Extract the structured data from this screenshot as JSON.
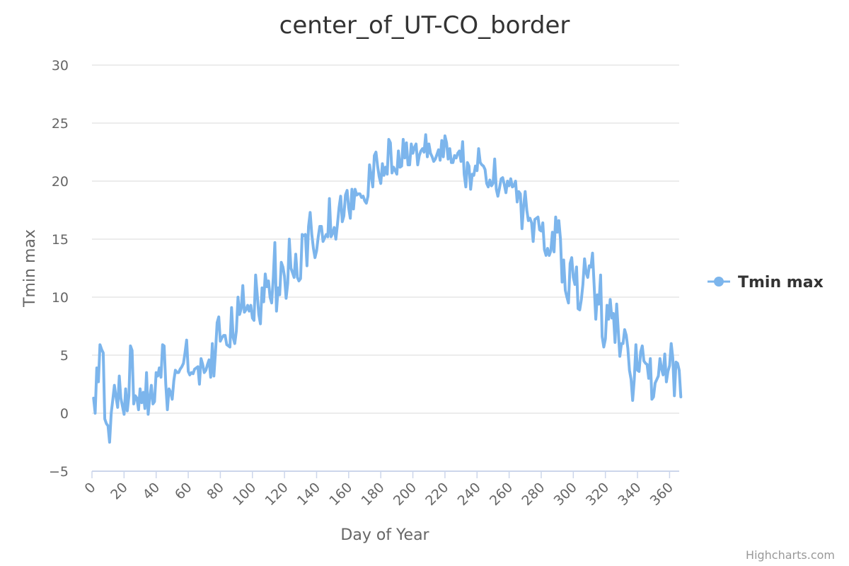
{
  "credits": "Highcharts.com",
  "colors": {
    "series": "#7cb5ec",
    "grid": "#e6e6e6",
    "axis": "#ccd6eb"
  },
  "chart_data": {
    "type": "line",
    "title": "center_of_UT-CO_border",
    "xlabel": "Day of Year",
    "ylabel": "Tmin max",
    "xlim": [
      0,
      366
    ],
    "ylim": [
      -5,
      30
    ],
    "x_ticks": [
      "0",
      "20",
      "40",
      "60",
      "80",
      "100",
      "120",
      "140",
      "160",
      "180",
      "200",
      "220",
      "240",
      "260",
      "280",
      "300",
      "320",
      "340",
      "360"
    ],
    "y_ticks": [
      "−5",
      "0",
      "5",
      "10",
      "15",
      "20",
      "25",
      "30"
    ],
    "grid": true,
    "legend": {
      "position": "right",
      "entries": [
        "Tmin max"
      ]
    },
    "series": [
      {
        "name": "Tmin max",
        "color": "#7cb5ec",
        "x_start": 1,
        "values": [
          1.3,
          0.0,
          3.9,
          2.7,
          5.9,
          5.5,
          5.2,
          -0.5,
          -0.9,
          -1.1,
          -2.5,
          0.0,
          1.2,
          2.4,
          1.4,
          0.5,
          3.2,
          1.3,
          0.6,
          -0.1,
          2.1,
          0.2,
          1.5,
          5.8,
          5.4,
          0.8,
          1.5,
          1.3,
          0.3,
          2.1,
          0.9,
          1.8,
          0.4,
          3.5,
          -0.1,
          1.3,
          2.4,
          0.8,
          1.0,
          3.5,
          3.2,
          3.9,
          3.1,
          5.9,
          5.8,
          2.5,
          0.3,
          2.1,
          1.8,
          1.2,
          2.8,
          3.7,
          3.5,
          3.5,
          3.8,
          4.0,
          4.3,
          5.2,
          6.3,
          3.6,
          3.3,
          3.5,
          3.4,
          3.8,
          3.9,
          4.0,
          2.5,
          4.7,
          4.2,
          3.5,
          3.7,
          4.2,
          4.6,
          3.1,
          6.0,
          3.2,
          5.3,
          7.8,
          8.3,
          6.2,
          6.5,
          6.7,
          6.7,
          5.9,
          5.8,
          5.7,
          9.1,
          6.5,
          6.0,
          7.1,
          10.0,
          8.5,
          9.0,
          11.0,
          8.7,
          8.9,
          9.3,
          8.8,
          9.3,
          8.2,
          8.0,
          11.9,
          10.2,
          8.5,
          7.7,
          10.8,
          9.6,
          12.0,
          10.9,
          11.4,
          10.0,
          9.5,
          11.7,
          14.7,
          8.8,
          10.8,
          10.2,
          13.0,
          12.6,
          11.8,
          9.9,
          11.2,
          15.0,
          12.5,
          12.1,
          11.7,
          13.7,
          11.7,
          11.4,
          11.6,
          15.4,
          15.3,
          15.4,
          12.7,
          16.1,
          17.3,
          15.4,
          14.2,
          13.4,
          14.0,
          15.2,
          16.1,
          16.1,
          14.8,
          15.1,
          15.4,
          15.2,
          18.5,
          15.2,
          15.5,
          16.0,
          15.0,
          16.3,
          17.7,
          18.7,
          16.5,
          17.0,
          18.8,
          19.2,
          17.7,
          16.8,
          19.3,
          17.6,
          19.3,
          18.8,
          18.9,
          18.9,
          18.6,
          18.7,
          18.3,
          18.1,
          18.7,
          21.4,
          20.5,
          19.5,
          22.2,
          22.5,
          21.3,
          20.4,
          19.8,
          21.5,
          20.5,
          21.2,
          20.6,
          23.6,
          23.3,
          20.7,
          21.2,
          20.9,
          20.6,
          22.6,
          21.2,
          21.3,
          23.6,
          22.0,
          23.3,
          21.4,
          21.4,
          23.2,
          22.4,
          22.9,
          23.2,
          21.4,
          22.2,
          22.6,
          22.8,
          22.5,
          24.0,
          22.1,
          23.2,
          22.4,
          22.1,
          21.7,
          21.9,
          22.3,
          22.7,
          21.8,
          23.5,
          22.1,
          23.9,
          23.3,
          21.9,
          22.8,
          21.6,
          21.6,
          22.2,
          22.0,
          22.4,
          22.6,
          21.7,
          23.4,
          20.6,
          19.5,
          21.6,
          21.3,
          19.3,
          20.6,
          20.5,
          21.3,
          20.9,
          22.8,
          21.6,
          21.4,
          21.3,
          21.0,
          19.8,
          19.5,
          20.1,
          19.6,
          19.8,
          21.9,
          19.3,
          18.7,
          19.4,
          20.2,
          20.3,
          19.7,
          19.0,
          20.0,
          19.6,
          20.2,
          19.5,
          19.6,
          20.0,
          18.2,
          19.1,
          18.9,
          15.9,
          17.8,
          19.1,
          17.5,
          16.6,
          16.8,
          16.4,
          14.8,
          16.7,
          16.8,
          16.9,
          15.8,
          15.7,
          16.4,
          14.1,
          13.6,
          14.2,
          13.6,
          14.0,
          15.6,
          13.9,
          16.9,
          15.6,
          16.6,
          15.0,
          11.3,
          13.2,
          10.6,
          10.0,
          9.5,
          12.9,
          13.4,
          11.7,
          11.1,
          12.6,
          9.0,
          8.9,
          9.8,
          11.1,
          13.3,
          12.1,
          11.7,
          12.7,
          12.6,
          13.8,
          11.0,
          8.1,
          10.2,
          9.4,
          11.9,
          6.6,
          5.7,
          6.4,
          9.3,
          8.1,
          9.8,
          8.2,
          8.6,
          6.1,
          9.4,
          7.2,
          4.9,
          6.0,
          6.0,
          7.2,
          6.7,
          5.6,
          3.7,
          2.9,
          1.1,
          2.9,
          5.9,
          3.7,
          3.6,
          5.3,
          5.8,
          4.5,
          4.3,
          4.2,
          3.0,
          4.7,
          1.2,
          1.4,
          2.6,
          2.9,
          3.2,
          4.7,
          3.8,
          3.3,
          5.1,
          2.7,
          3.6,
          4.1,
          6.0,
          4.8,
          1.5,
          4.4,
          4.3,
          3.7,
          1.4
        ]
      }
    ]
  }
}
